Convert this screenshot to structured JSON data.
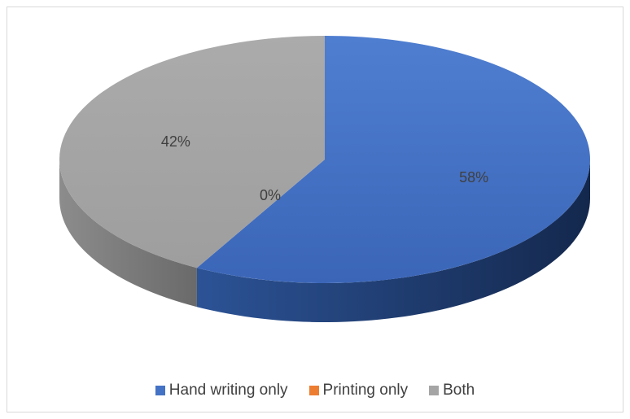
{
  "chart_data": {
    "type": "pie",
    "style": "3d",
    "title": "",
    "categories": [
      "Hand writing only",
      "Printing only",
      "Both"
    ],
    "values": [
      58,
      0,
      42
    ],
    "labels": [
      "58%",
      "0%",
      "42%"
    ],
    "colors": [
      "#4472c4",
      "#ed7d31",
      "#a5a5a5"
    ],
    "legend_position": "bottom"
  },
  "legend": {
    "items": [
      {
        "label": "Hand writing only",
        "color": "#4472c4"
      },
      {
        "label": "Printing only",
        "color": "#ed7d31"
      },
      {
        "label": "Both",
        "color": "#a5a5a5"
      }
    ]
  }
}
